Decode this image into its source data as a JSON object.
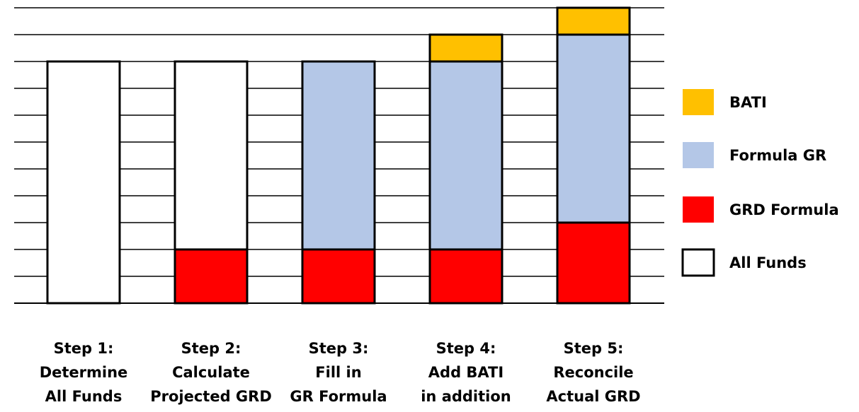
{
  "chart_data": {
    "type": "bar",
    "stacked": true,
    "grid": true,
    "ylim": [
      0,
      11
    ],
    "categories": [
      [
        "Step 1:",
        "Determine",
        "All Funds"
      ],
      [
        "Step 2:",
        "Calculate",
        "Projected GRD"
      ],
      [
        "Step 3:",
        "Fill in",
        "GR Formula"
      ],
      [
        "Step 4:",
        "Add BATI",
        "in addition"
      ],
      [
        "Step 5:",
        "Reconcile",
        "Actual GRD"
      ]
    ],
    "series": [
      {
        "name": "GRD Formula",
        "key": "grd",
        "color": "#ff0000",
        "values": [
          0,
          2,
          2,
          2,
          3
        ]
      },
      {
        "name": "Formula GR",
        "key": "formula",
        "color": "#b4c7e7",
        "values": [
          0,
          0,
          7,
          7,
          7
        ]
      },
      {
        "name": "BATI",
        "key": "bati",
        "color": "#ffc000",
        "values": [
          0,
          0,
          0,
          1,
          1
        ]
      },
      {
        "name": "All Funds",
        "key": "allfunds",
        "color": "#ffffff",
        "values": [
          9,
          7,
          0,
          0,
          0
        ]
      }
    ],
    "legend": {
      "position": "right",
      "order": [
        "BATI",
        "Formula GR",
        " GRD Formula",
        "All Funds"
      ]
    }
  }
}
